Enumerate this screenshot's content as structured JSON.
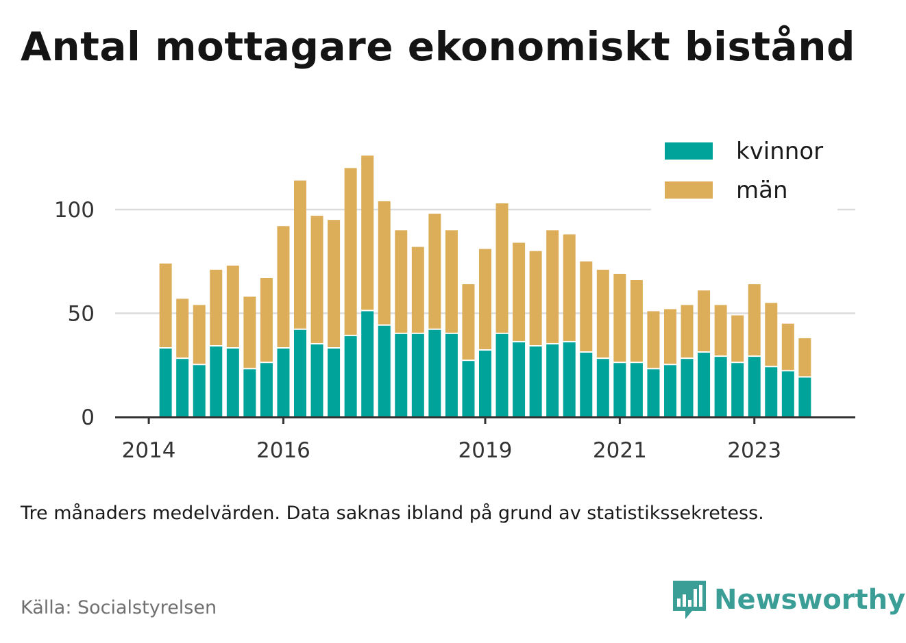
{
  "title": "Antal mottagare ekonomiskt bistånd",
  "note": "Tre månaders medelvärden. Data saknas ibland på grund av statistikssekretess.",
  "source": "Källa: Socialstyrelsen",
  "brand": {
    "name": "Newsworthy",
    "icon": "newsworthy-logo-icon"
  },
  "colors": {
    "kvinnor": "#00a39a",
    "man": "#dcae5a",
    "grid": "#dcdcdc",
    "axis": "#333333",
    "text": "#333333"
  },
  "chart_data": {
    "type": "bar",
    "stacked": true,
    "ylim": [
      0,
      130
    ],
    "yticks": [
      0,
      50,
      100
    ],
    "xlim": [
      2013.5,
      2024.5
    ],
    "xticks": [
      2014,
      2016,
      2019,
      2021,
      2023
    ],
    "legend": {
      "position": "top-right",
      "labels": [
        "kvinnor",
        "män"
      ]
    },
    "grid": true,
    "x": [
      2014.25,
      2014.5,
      2014.75,
      2015.0,
      2015.25,
      2015.5,
      2015.75,
      2016.0,
      2016.25,
      2016.5,
      2016.75,
      2017.0,
      2017.25,
      2017.5,
      2017.75,
      2018.0,
      2018.25,
      2018.5,
      2018.75,
      2019.0,
      2019.25,
      2019.5,
      2019.75,
      2020.0,
      2020.25,
      2020.5,
      2020.75,
      2021.0,
      2021.25,
      2021.5,
      2021.75,
      2022.0,
      2022.25,
      2022.5,
      2022.75,
      2023.0,
      2023.25,
      2023.5,
      2023.75
    ],
    "series": [
      {
        "name": "kvinnor",
        "values": [
          33,
          28,
          25,
          34,
          33,
          23,
          26,
          33,
          42,
          35,
          33,
          39,
          51,
          44,
          40,
          40,
          42,
          40,
          27,
          32,
          40,
          36,
          34,
          35,
          36,
          31,
          28,
          26,
          26,
          23,
          25,
          28,
          31,
          29,
          26,
          29,
          24,
          22,
          19
        ]
      },
      {
        "name": "män",
        "values": [
          41,
          29,
          29,
          37,
          40,
          35,
          41,
          59,
          72,
          62,
          62,
          81,
          75,
          60,
          50,
          42,
          56,
          50,
          37,
          49,
          63,
          48,
          46,
          55,
          52,
          44,
          43,
          43,
          40,
          28,
          27,
          26,
          30,
          25,
          23,
          35,
          31,
          23,
          19
        ]
      }
    ]
  }
}
